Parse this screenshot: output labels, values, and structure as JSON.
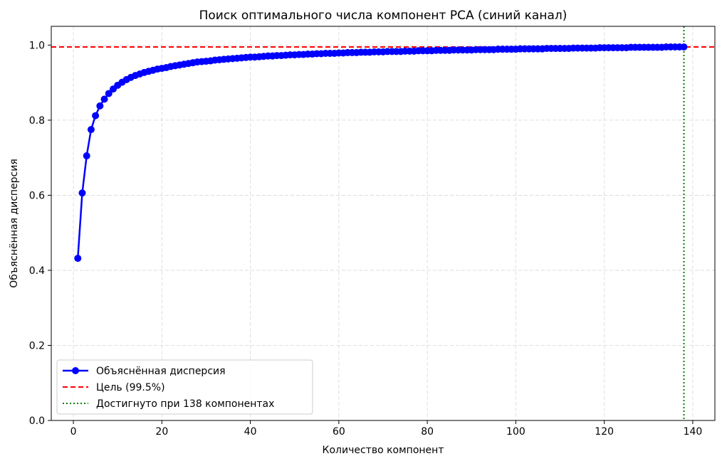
{
  "chart_data": {
    "type": "line",
    "title": "Поиск оптимального числа компонент PCA (синий канал)",
    "xlabel": "Количество компонент",
    "ylabel": "Объяснённая дисперсия",
    "xlim": [
      -5,
      145
    ],
    "ylim": [
      0,
      1.05
    ],
    "xticks": [
      "0",
      "20",
      "40",
      "60",
      "80",
      "100",
      "120",
      "140"
    ],
    "yticks": [
      "0.0",
      "0.2",
      "0.4",
      "0.6",
      "0.8",
      "1.0"
    ],
    "grid": true,
    "legend_position": "lower-left",
    "series": [
      {
        "name": "Объяснённая дисперсия",
        "color": "#0000ff",
        "marker": "circle",
        "x_start": 1,
        "x_end": 138,
        "values": [
          0.432,
          0.606,
          0.705,
          0.775,
          0.812,
          0.838,
          0.856,
          0.871,
          0.883,
          0.893,
          0.901,
          0.908,
          0.914,
          0.919,
          0.923,
          0.927,
          0.93,
          0.933,
          0.936,
          0.938,
          0.94,
          0.943,
          0.945,
          0.947,
          0.949,
          0.951,
          0.953,
          0.955,
          0.956,
          0.957,
          0.958,
          0.96,
          0.961,
          0.962,
          0.963,
          0.964,
          0.965,
          0.966,
          0.967,
          0.968,
          0.968,
          0.969,
          0.97,
          0.971,
          0.971,
          0.972,
          0.972,
          0.973,
          0.974,
          0.974,
          0.975,
          0.975,
          0.976,
          0.976,
          0.977,
          0.977,
          0.978,
          0.978,
          0.978,
          0.979,
          0.979,
          0.98,
          0.98,
          0.98,
          0.981,
          0.981,
          0.981,
          0.982,
          0.982,
          0.982,
          0.983,
          0.983,
          0.983,
          0.983,
          0.984,
          0.984,
          0.984,
          0.985,
          0.985,
          0.985,
          0.985,
          0.986,
          0.986,
          0.986,
          0.986,
          0.987,
          0.987,
          0.987,
          0.987,
          0.987,
          0.988,
          0.988,
          0.988,
          0.988,
          0.988,
          0.989,
          0.989,
          0.989,
          0.989,
          0.989,
          0.99,
          0.99,
          0.99,
          0.99,
          0.99,
          0.99,
          0.991,
          0.991,
          0.991,
          0.991,
          0.991,
          0.991,
          0.992,
          0.992,
          0.992,
          0.992,
          0.992,
          0.992,
          0.993,
          0.993,
          0.993,
          0.993,
          0.993,
          0.993,
          0.993,
          0.994,
          0.994,
          0.994,
          0.994,
          0.994,
          0.994,
          0.994,
          0.994,
          0.995,
          0.995,
          0.995,
          0.995,
          0.995
        ]
      }
    ],
    "hlines": [
      {
        "name": "Цель (99.5%)",
        "y": 0.995,
        "color": "#ff0000",
        "style": "dashed"
      }
    ],
    "vlines": [
      {
        "name": "Достигнуто при 138 компонентах",
        "x": 138,
        "color": "#008000",
        "style": "dotted"
      }
    ]
  }
}
